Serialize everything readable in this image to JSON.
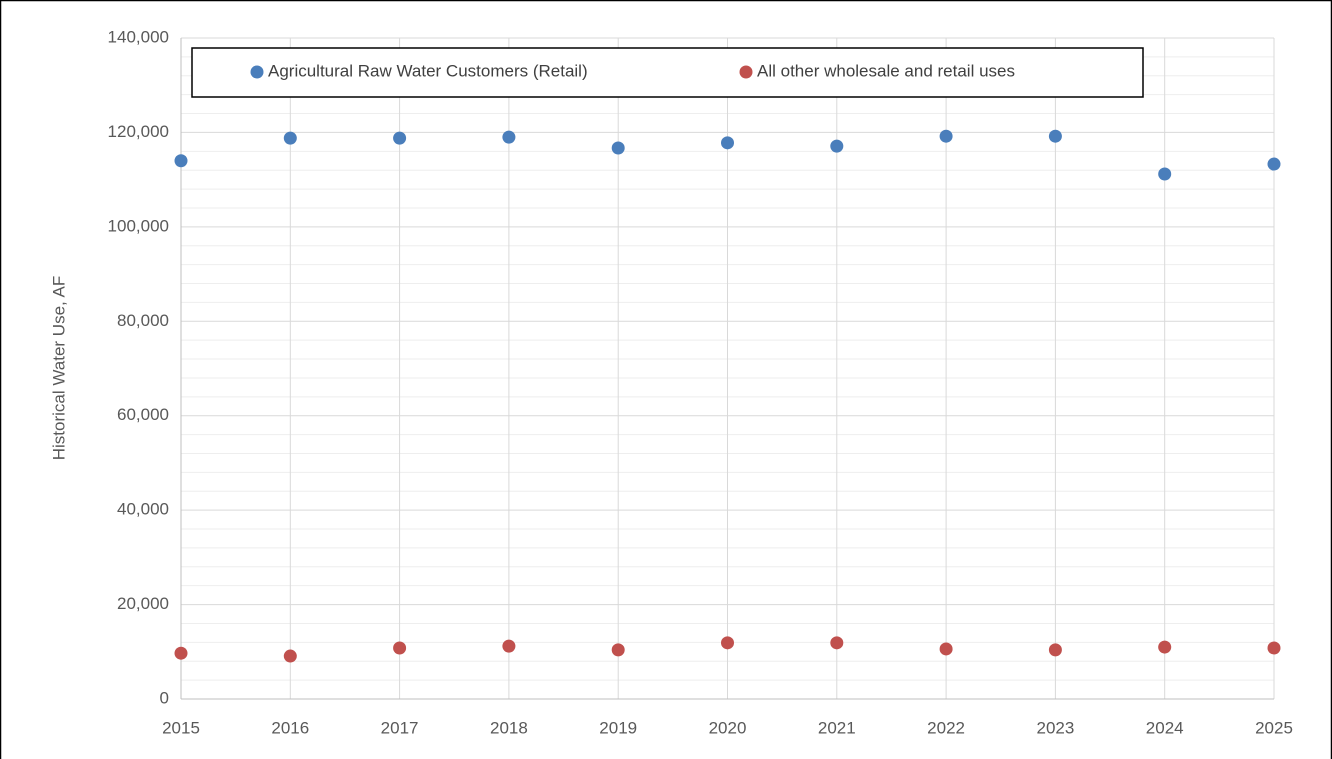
{
  "chart_data": {
    "type": "scatter",
    "y_label": "Historical Water Use, AF",
    "x": [
      2015,
      2016,
      2017,
      2018,
      2019,
      2020,
      2021,
      2022,
      2023,
      2024,
      2025
    ],
    "series": [
      {
        "name": "Agricultural Raw Water Customers (Retail)",
        "color": "#4a7ebb",
        "values": [
          114000,
          118800,
          118800,
          119000,
          116700,
          117800,
          117100,
          119200,
          119200,
          111200,
          113300
        ]
      },
      {
        "name": "All other wholesale and retail uses",
        "color": "#c0504d",
        "values": [
          9700,
          9100,
          10800,
          11200,
          10400,
          11900,
          11900,
          10600,
          10400,
          11000,
          10800
        ]
      }
    ],
    "xlim": [
      2015,
      2025
    ],
    "xticks": [
      2015,
      2016,
      2017,
      2018,
      2019,
      2020,
      2021,
      2022,
      2023,
      2024,
      2025
    ],
    "ylim": [
      0,
      140000
    ],
    "yticks": [
      0,
      {
        "value": 20000,
        "label": "20,000"
      },
      {
        "value": 40000,
        "label": "40,000"
      },
      {
        "value": 60000,
        "label": "60,000"
      },
      {
        "value": 80000,
        "label": "80,000"
      },
      {
        "value": 100000,
        "label": "100,000"
      },
      {
        "value": 120000,
        "label": "120,000"
      },
      {
        "value": 140000,
        "label": "140,000"
      }
    ],
    "grid": true,
    "minor_grid": true,
    "legend": "top"
  }
}
